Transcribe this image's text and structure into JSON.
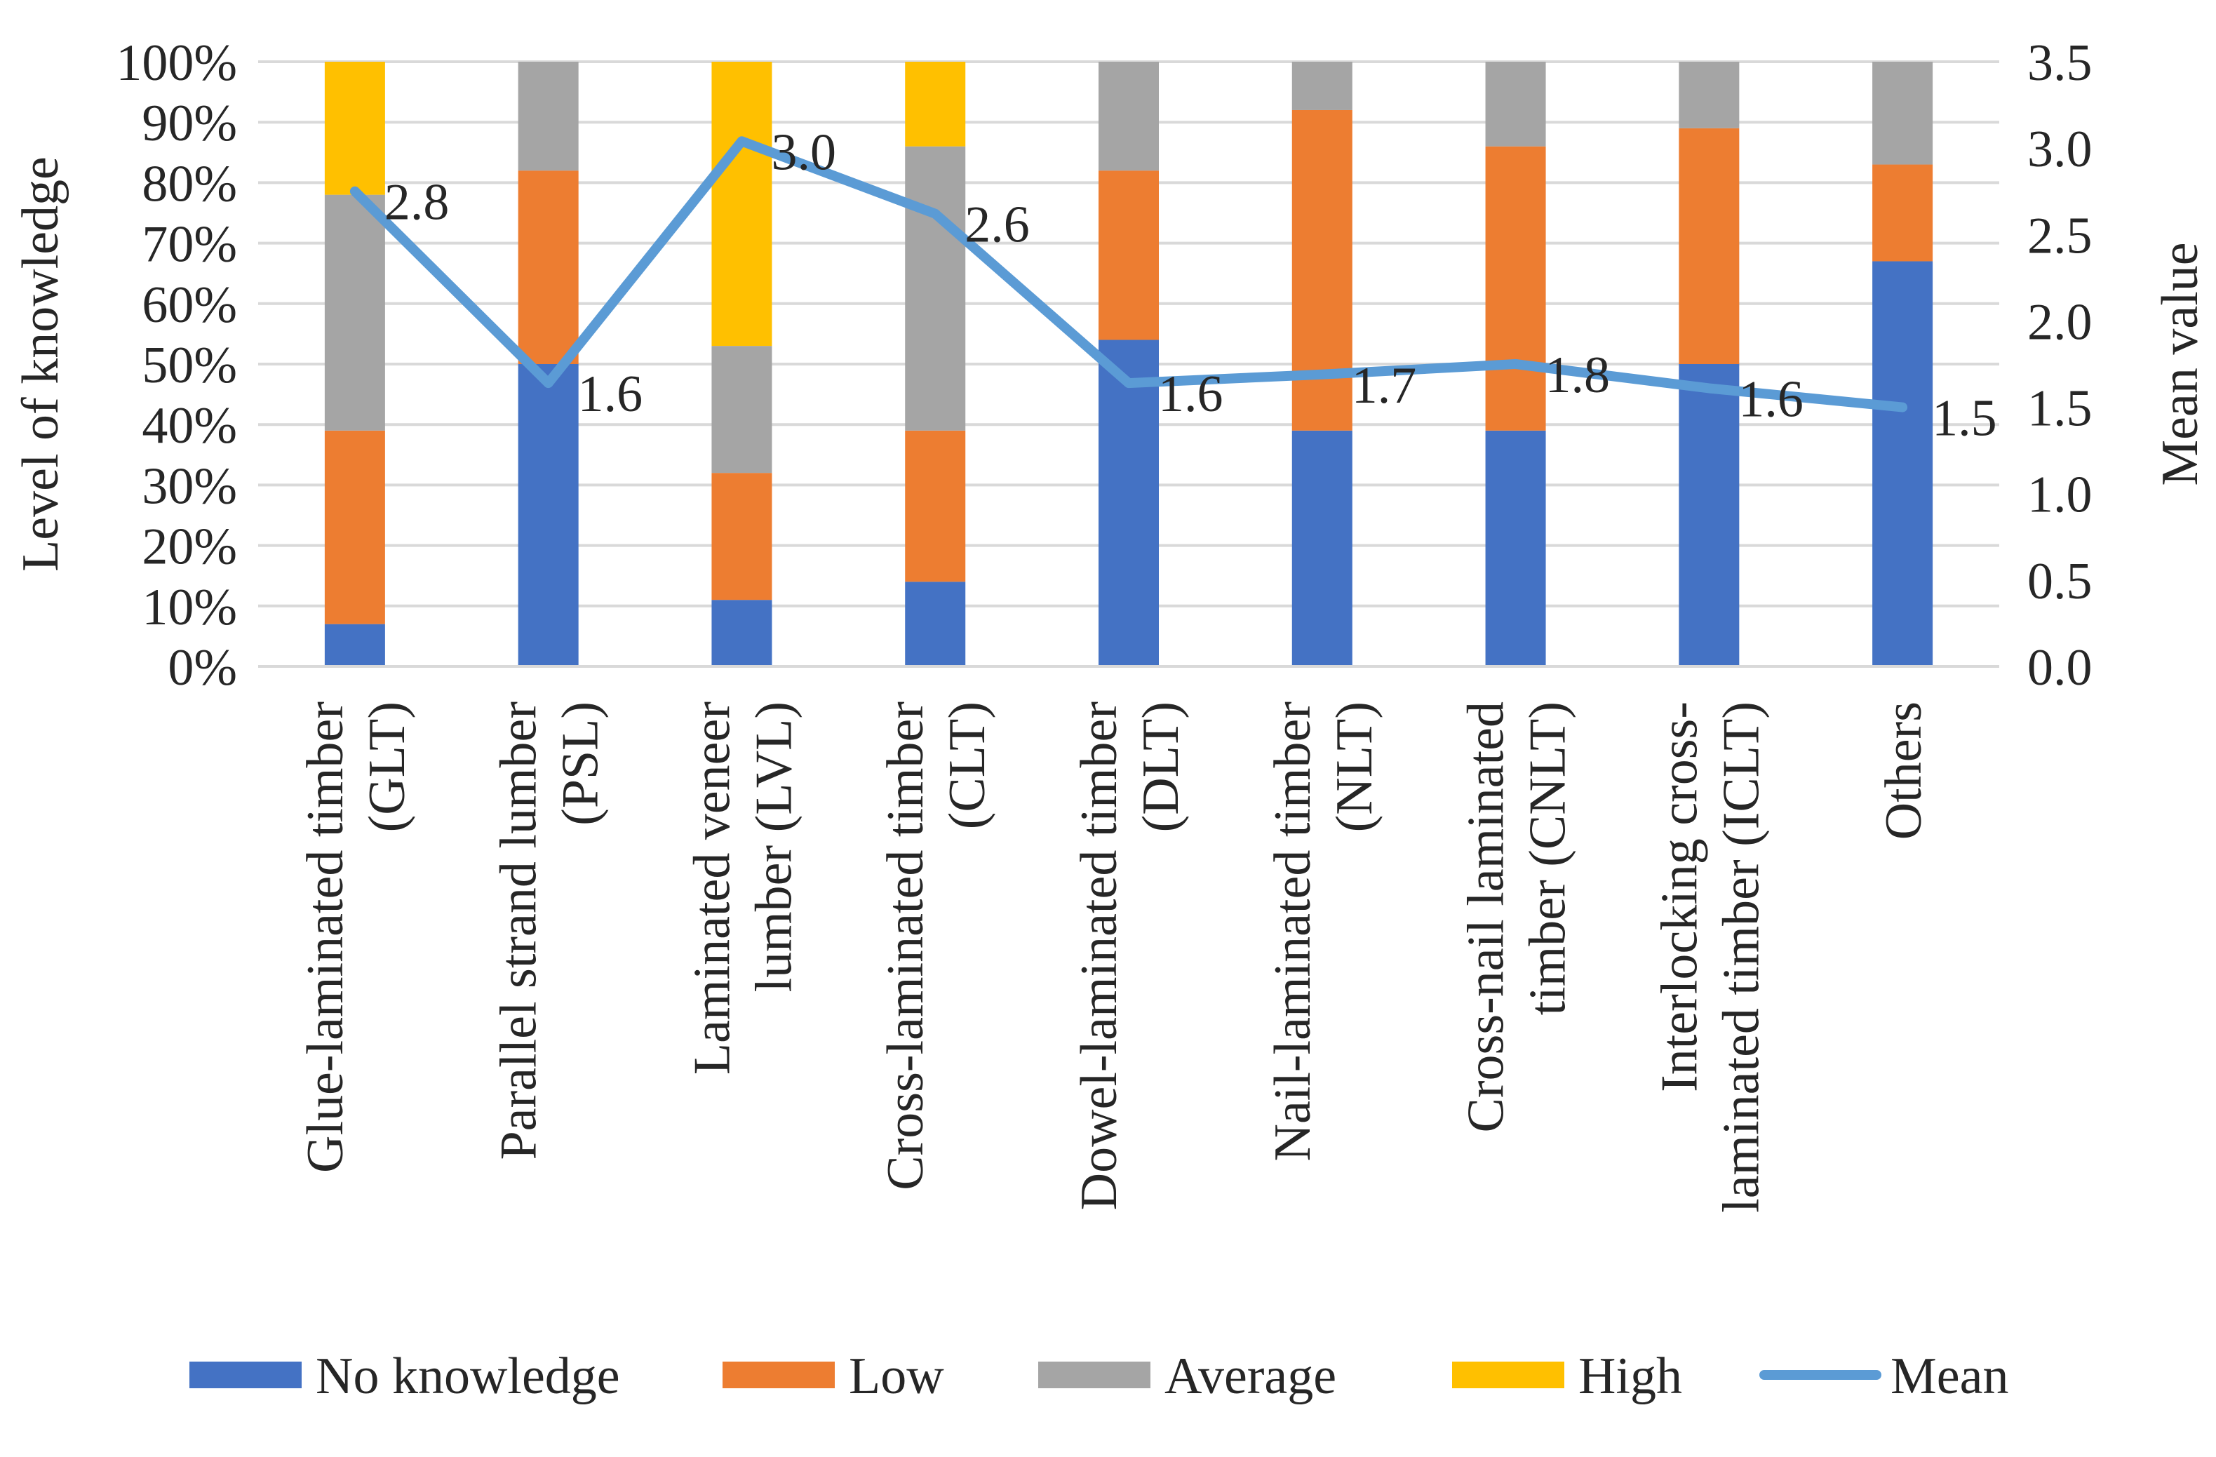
{
  "chart_data": {
    "type": "bar",
    "stacked": true,
    "percent_stacked": true,
    "categories": [
      [
        "Glue-laminated timber",
        "(GLT)"
      ],
      [
        "Parallel strand lumber",
        "(PSL)"
      ],
      [
        "Laminated veneer",
        "lumber (LVL)"
      ],
      [
        "Cross-laminated timber",
        "(CLT)"
      ],
      [
        "Dowel-laminated timber",
        "(DLT)"
      ],
      [
        "Nail-laminated timber",
        "(NLT)"
      ],
      [
        "Cross-nail laminated",
        "timber (CNLT)"
      ],
      [
        "Interlocking cross-",
        "laminated timber (ICLT)"
      ],
      [
        "Others"
      ]
    ],
    "series": [
      {
        "name": "No knowledge",
        "color": "#4472C4",
        "values": [
          7,
          50,
          11,
          14,
          54,
          39,
          39,
          50,
          67
        ]
      },
      {
        "name": "Low",
        "color": "#ED7D31",
        "values": [
          32,
          32,
          21,
          25,
          28,
          53,
          47,
          39,
          16
        ]
      },
      {
        "name": "Average",
        "color": "#A5A5A5",
        "values": [
          39,
          18,
          21,
          47,
          18,
          8,
          14,
          11,
          17
        ]
      },
      {
        "name": "High",
        "color": "#FFC000",
        "values": [
          22,
          0,
          47,
          14,
          0,
          0,
          0,
          0,
          0
        ]
      }
    ],
    "line_series": {
      "name": "Mean",
      "color": "#5B9BD5",
      "values": [
        2.75,
        1.64,
        3.04,
        2.62,
        1.64,
        1.69,
        1.75,
        1.61,
        1.5
      ],
      "labels": [
        "2.8",
        "1.6",
        "3.0",
        "2.6",
        "1.6",
        "1.7",
        "1.8",
        "1.6",
        "1.5"
      ]
    },
    "ylabel": "Level of knowledge",
    "y2label": "Mean value",
    "ylim": [
      0,
      100
    ],
    "y2lim": [
      0,
      3.5
    ],
    "yticks": [
      "0%",
      "10%",
      "20%",
      "30%",
      "40%",
      "50%",
      "60%",
      "70%",
      "80%",
      "90%",
      "100%"
    ],
    "y2ticks": [
      "0.0",
      "0.5",
      "1.0",
      "1.5",
      "2.0",
      "2.5",
      "3.0",
      "3.5"
    ],
    "legend_position": "bottom",
    "grid": true
  }
}
